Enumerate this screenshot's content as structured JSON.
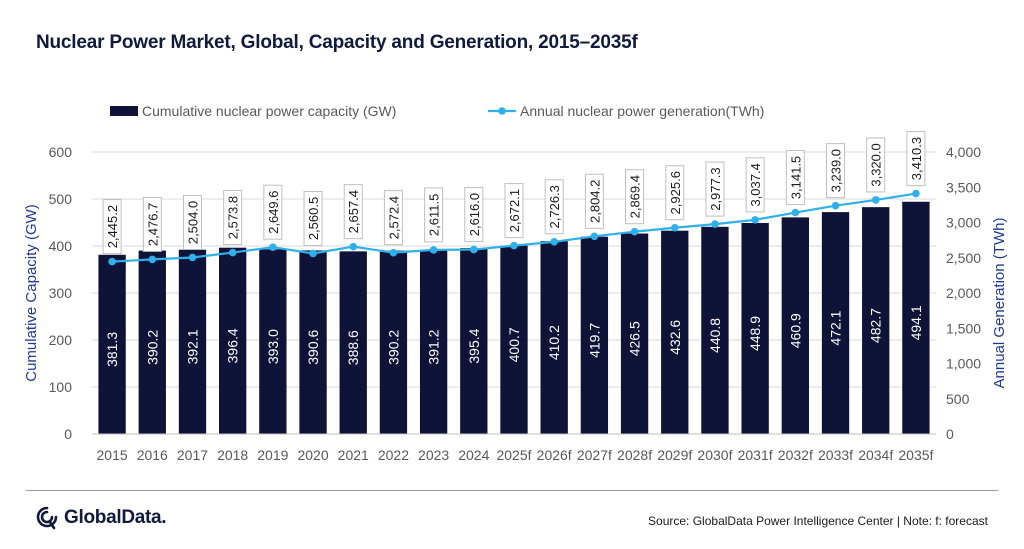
{
  "title": "Nuclear Power Market, Global, Capacity and Generation, 2015–2035f",
  "logo_text": "GlobalData.",
  "source": "Source: GlobalData Power Intelligence Center | Note: f: forecast",
  "colors": {
    "bar": "#0f1338",
    "line": "#2fb0ea",
    "axis_title": "#1f3a93"
  },
  "chart_data": {
    "type": "bar",
    "categories": [
      "2015",
      "2016",
      "2017",
      "2018",
      "2019",
      "2020",
      "2021",
      "2022",
      "2023",
      "2024",
      "2025f",
      "2026f",
      "2027f",
      "2028f",
      "2029f",
      "2030f",
      "2031f",
      "2032f",
      "2033f",
      "2034f",
      "2035f"
    ],
    "series": [
      {
        "name": "Cumulative nuclear power capacity (GW)",
        "type": "bar",
        "axis": "left",
        "values": [
          381.3,
          390.2,
          392.1,
          396.4,
          393.0,
          390.6,
          388.6,
          390.2,
          391.2,
          395.4,
          400.7,
          410.2,
          419.7,
          426.5,
          432.6,
          440.8,
          448.9,
          460.9,
          472.1,
          482.7,
          494.1
        ],
        "labels": [
          "381.3",
          "390.2",
          "392.1",
          "396.4",
          "393.0",
          "390.6",
          "388.6",
          "390.2",
          "391.2",
          "395.4",
          "400.7",
          "410.2",
          "419.7",
          "426.5",
          "432.6",
          "440.8",
          "448.9",
          "460.9",
          "472.1",
          "482.7",
          "494.1"
        ]
      },
      {
        "name": "Annual nuclear power generation(TWh)",
        "type": "line",
        "axis": "right",
        "values": [
          2445.2,
          2476.7,
          2504.0,
          2573.8,
          2649.6,
          2560.5,
          2657.4,
          2572.4,
          2611.5,
          2616.0,
          2672.1,
          2726.3,
          2804.2,
          2869.4,
          2925.6,
          2977.3,
          3037.4,
          3141.5,
          3239.0,
          3320.0,
          3410.3
        ],
        "labels": [
          "2,445.2",
          "2,476.7",
          "2,504.0",
          "2,573.8",
          "2,649.6",
          "2,560.5",
          "2,657.4",
          "2,572.4",
          "2,611.5",
          "2,616.0",
          "2,672.1",
          "2,726.3",
          "2,804.2",
          "2,869.4",
          "2,925.6",
          "2,977.3",
          "3,037.4",
          "3,141.5",
          "3,239.0",
          "3,320.0",
          "3,410.3"
        ]
      }
    ],
    "ylabel": "Cumulative Capacity (GW)",
    "ylim": [
      0,
      600
    ],
    "yticks": [
      "0",
      "100",
      "200",
      "300",
      "400",
      "500",
      "600"
    ],
    "ylabel_right": "Annual Generation (TWh)",
    "ylim_right": [
      0,
      4000
    ],
    "yticks_right": [
      "0",
      "500",
      "1,000",
      "1,500",
      "2,000",
      "2,500",
      "3,000",
      "3,500",
      "4,000"
    ],
    "grid": true,
    "legend_position": "top"
  }
}
